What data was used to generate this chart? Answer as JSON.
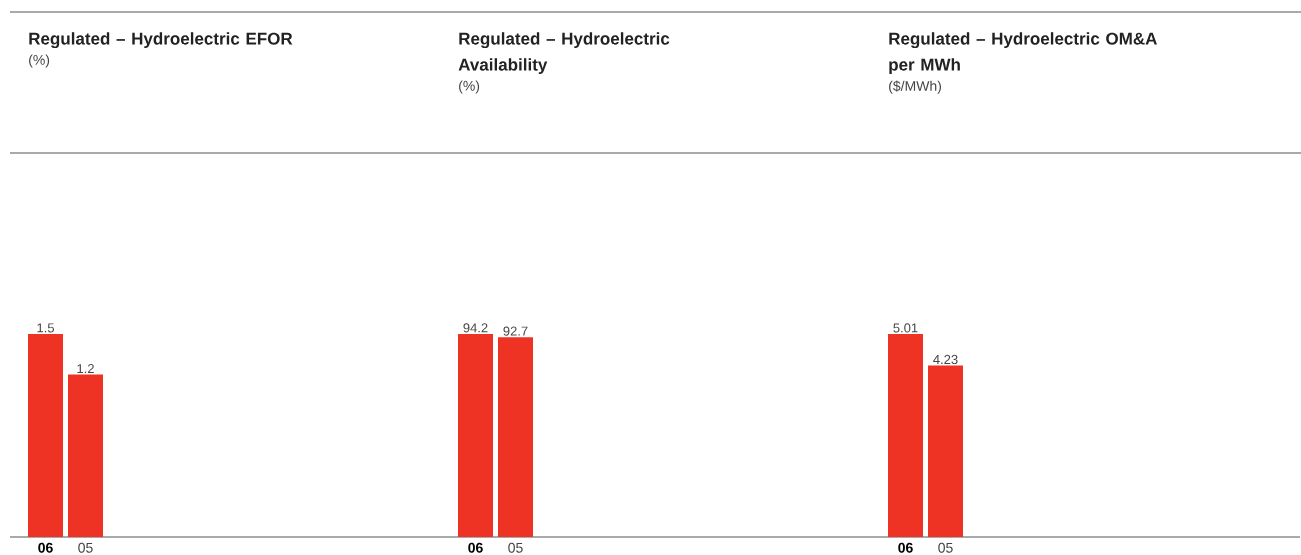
{
  "chart_data": [
    {
      "type": "bar",
      "title": "Regulated – Hydroelectric EFOR",
      "subtitle": "(%)",
      "categories": [
        "06",
        "05"
      ],
      "values": [
        1.5,
        1.2
      ],
      "color": "#ee3224",
      "data_labels": true
    },
    {
      "type": "bar",
      "title": "Regulated – Hydroelectric Availability",
      "subtitle": "(%)",
      "categories": [
        "06",
        "05"
      ],
      "values": [
        94.2,
        92.7
      ],
      "color": "#ee3224",
      "data_labels": true
    },
    {
      "type": "bar",
      "title": "Regulated – Hydroelectric OM&A per MWh",
      "subtitle": "($/MWh)",
      "categories": [
        "06",
        "05"
      ],
      "values": [
        5.01,
        4.23
      ],
      "color": "#ee3224",
      "data_labels": true
    }
  ]
}
